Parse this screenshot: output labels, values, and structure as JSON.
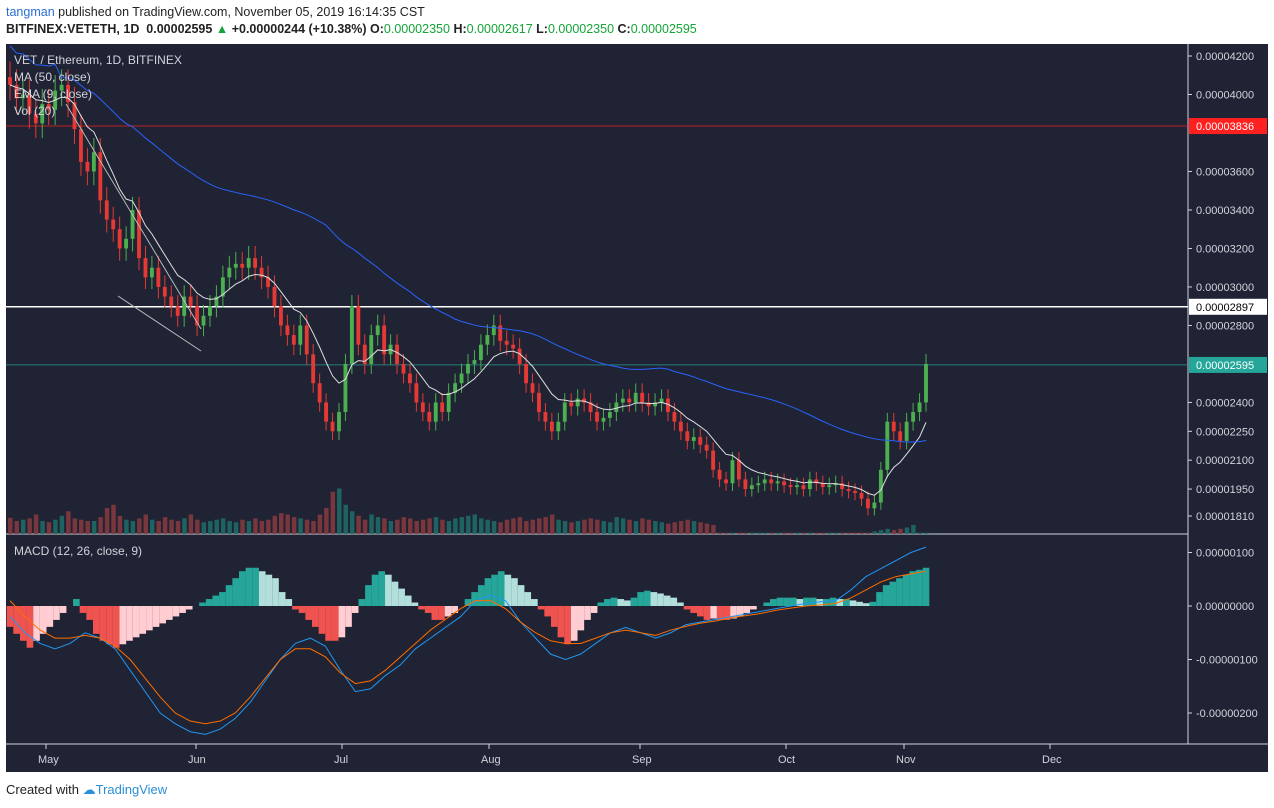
{
  "header": {
    "author": "tangman",
    "published": "published on TradingView.com, November 05, 2019 16:14:35 CST",
    "symbol": "BITFINEX:VETETH, 1D",
    "last": "0.00002595",
    "change": "+0.00000244 (+10.38%)",
    "open_label": "O:",
    "open": "0.00002350",
    "high_label": "H:",
    "high": "0.00002617",
    "low_label": "L:",
    "low": "0.00002350",
    "close_label": "C:",
    "close": "0.00002595"
  },
  "footer": {
    "created_with": "Created with",
    "brand": "TradingView"
  },
  "colors": {
    "up": "#26a69a",
    "down": "#ef5350",
    "up_candle": "#4caf50",
    "down_candle": "#e53935",
    "background": "#1f2333",
    "grid": "#2a2e3e"
  },
  "chart_data": [
    {
      "type": "candlestick",
      "title": "VET / Ethereum, 1D, BITFINEX",
      "indicators": [
        "MA (50, close)",
        "EMA (9, close)",
        "Vol (20)"
      ],
      "y_ticks": [
        "0.00004200",
        "0.00004000",
        "0.00003836",
        "0.00003600",
        "0.00003400",
        "0.00003200",
        "0.00003000",
        "0.00002897",
        "0.00002800",
        "0.00002595",
        "0.00002400",
        "0.00002250",
        "0.00002100",
        "0.00001950",
        "0.00001810"
      ],
      "y_tick_values": [
        4.2e-05,
        4e-05,
        3.8e-05,
        3.6e-05,
        3.4e-05,
        3.2e-05,
        3e-05,
        2.9e-05,
        2.8e-05,
        2.6e-05,
        2.4e-05,
        2.25e-05,
        2.1e-05,
        1.95e-05,
        1.81e-05
      ],
      "price_lines": [
        {
          "label": "0.00003836",
          "value": 3.836e-05,
          "color": "#ff2020"
        },
        {
          "label": "0.00002897",
          "value": 2.897e-05,
          "color": "#ffffff"
        },
        {
          "label": "0.00002595",
          "value": 2.595e-05,
          "color": "#26a69a"
        }
      ],
      "x_labels": [
        "May",
        "Jun",
        "Jul",
        "Aug",
        "Sep",
        "Oct",
        "Nov",
        "Dec"
      ],
      "closes": [
        4.05e-05,
        3.98e-05,
        4e-05,
        3.9e-05,
        3.85e-05,
        3.95e-05,
        3.92e-05,
        4.02e-05,
        4.05e-05,
        3.96e-05,
        3.82e-05,
        3.65e-05,
        3.6e-05,
        3.7e-05,
        3.45e-05,
        3.35e-05,
        3.3e-05,
        3.2e-05,
        3.25e-05,
        3.4e-05,
        3.15e-05,
        3.05e-05,
        3.1e-05,
        3e-05,
        2.95e-05,
        2.9e-05,
        2.85e-05,
        2.95e-05,
        2.9e-05,
        2.8e-05,
        2.85e-05,
        2.9e-05,
        2.95e-05,
        3.05e-05,
        3.1e-05,
        3.12e-05,
        3.1e-05,
        3.15e-05,
        3.1e-05,
        3.05e-05,
        3e-05,
        2.9e-05,
        2.8e-05,
        2.75e-05,
        2.7e-05,
        2.8e-05,
        2.65e-05,
        2.5e-05,
        2.4e-05,
        2.3e-05,
        2.25e-05,
        2.35e-05,
        2.6e-05,
        2.9e-05,
        2.7e-05,
        2.6e-05,
        2.75e-05,
        2.8e-05,
        2.65e-05,
        2.7e-05,
        2.6e-05,
        2.55e-05,
        2.5e-05,
        2.4e-05,
        2.35e-05,
        2.3e-05,
        2.4e-05,
        2.35e-05,
        2.45e-05,
        2.5e-05,
        2.55e-05,
        2.6e-05,
        2.62e-05,
        2.7e-05,
        2.75e-05,
        2.8e-05,
        2.72e-05,
        2.7e-05,
        2.68e-05,
        2.6e-05,
        2.5e-05,
        2.45e-05,
        2.35e-05,
        2.3e-05,
        2.25e-05,
        2.3e-05,
        2.4e-05,
        2.38e-05,
        2.42e-05,
        2.4e-05,
        2.35e-05,
        2.3e-05,
        2.32e-05,
        2.35e-05,
        2.4e-05,
        2.42e-05,
        2.4e-05,
        2.45e-05,
        2.4e-05,
        2.38e-05,
        2.4e-05,
        2.42e-05,
        2.35e-05,
        2.3e-05,
        2.25e-05,
        2.2e-05,
        2.22e-05,
        2.18e-05,
        2.15e-05,
        2.05e-05,
        2e-05,
        1.98e-05,
        2.1e-05,
        2e-05,
        1.95e-05,
        1.97e-05,
        1.98e-05,
        2e-05,
        1.98e-05,
        1.99e-05,
        1.97e-05,
        1.96e-05,
        1.97e-05,
        1.95e-05,
        2e-05,
        1.98e-05,
        1.96e-05,
        1.97e-05,
        1.98e-05,
        1.95e-05,
        1.94e-05,
        1.93e-05,
        1.9e-05,
        1.85e-05,
        1.88e-05,
        2.05e-05,
        2.3e-05,
        2.25e-05,
        2.2e-05,
        2.3e-05,
        2.35e-05,
        2.4e-05,
        2.6e-05
      ],
      "ma50_closes_note": "",
      "volume": [
        25,
        20,
        22,
        24,
        30,
        20,
        18,
        22,
        28,
        35,
        24,
        22,
        20,
        20,
        26,
        40,
        45,
        28,
        22,
        20,
        24,
        30,
        22,
        20,
        26,
        22,
        20,
        24,
        30,
        22,
        18,
        20,
        22,
        24,
        20,
        18,
        22,
        20,
        24,
        20,
        22,
        28,
        32,
        30,
        26,
        24,
        22,
        20,
        30,
        40,
        65,
        70,
        45,
        35,
        28,
        22,
        30,
        26,
        24,
        20,
        22,
        26,
        24,
        20,
        22,
        24,
        26,
        22,
        20,
        24,
        26,
        28,
        30,
        24,
        22,
        20,
        18,
        22,
        24,
        26,
        20,
        22,
        24,
        26,
        30,
        22,
        20,
        18,
        20,
        22,
        24,
        22,
        20,
        18,
        26,
        24,
        22,
        20,
        24,
        22,
        20,
        18,
        16,
        18,
        20,
        22,
        20,
        18,
        16,
        14,
        2,
        2,
        2,
        2,
        2,
        2,
        2,
        2,
        2,
        2,
        2,
        2,
        2,
        2,
        2,
        2,
        2,
        2,
        2,
        2,
        2,
        2,
        2,
        2,
        4,
        6,
        8,
        6,
        8,
        10,
        14
      ]
    },
    {
      "type": "bar",
      "title": "MACD (12, 26, close, 9)",
      "y_ticks": [
        "0.00000100",
        "0.00000000",
        "-0.00000100",
        "-0.00000200"
      ],
      "y_tick_values": [
        1e-06,
        0.0,
        -1e-06,
        -2e-06
      ],
      "histogram": [
        -0.3,
        -0.4,
        -0.5,
        -0.6,
        -0.5,
        -0.4,
        -0.3,
        -0.2,
        -0.1,
        0.0,
        0.1,
        -0.1,
        -0.2,
        -0.4,
        -0.5,
        -0.55,
        -0.6,
        -0.55,
        -0.5,
        -0.45,
        -0.4,
        -0.35,
        -0.3,
        -0.25,
        -0.2,
        -0.15,
        -0.1,
        -0.05,
        0.0,
        0.05,
        0.1,
        0.15,
        0.2,
        0.3,
        0.4,
        0.5,
        0.55,
        0.55,
        0.5,
        0.45,
        0.4,
        0.2,
        0.1,
        -0.05,
        -0.1,
        -0.2,
        -0.3,
        -0.4,
        -0.5,
        -0.5,
        -0.45,
        -0.3,
        -0.1,
        0.1,
        0.3,
        0.45,
        0.5,
        0.45,
        0.35,
        0.25,
        0.15,
        0.05,
        -0.05,
        -0.1,
        -0.2,
        -0.2,
        -0.15,
        -0.1,
        0.0,
        0.1,
        0.2,
        0.3,
        0.4,
        0.45,
        0.5,
        0.45,
        0.4,
        0.3,
        0.2,
        0.1,
        -0.05,
        -0.15,
        -0.3,
        -0.45,
        -0.55,
        -0.5,
        -0.35,
        -0.2,
        -0.1,
        0.05,
        0.1,
        0.12,
        0.1,
        0.08,
        0.12,
        0.2,
        0.22,
        0.2,
        0.18,
        0.15,
        0.12,
        0.05,
        -0.05,
        -0.1,
        -0.15,
        -0.2,
        -0.18,
        -0.2,
        -0.2,
        -0.18,
        -0.15,
        -0.1,
        -0.05,
        0.0,
        0.05,
        0.1,
        0.12,
        0.12,
        0.12,
        0.1,
        0.12,
        0.12,
        0.1,
        0.1,
        0.12,
        0.1,
        0.1,
        0.08,
        0.06,
        0.04,
        0.06,
        0.2,
        0.3,
        0.35,
        0.4,
        0.45,
        0.5,
        0.52,
        0.55
      ],
      "macd_line": [
        -0.2,
        -0.5,
        -0.7,
        -0.8,
        -0.7,
        -0.5,
        -0.6,
        -0.8,
        -1.2,
        -1.6,
        -2.0,
        -2.2,
        -2.35,
        -2.4,
        -2.3,
        -2.1,
        -1.8,
        -1.4,
        -1.0,
        -0.7,
        -0.6,
        -0.75,
        -1.2,
        -1.6,
        -1.55,
        -1.3,
        -1.1,
        -0.8,
        -0.6,
        -0.4,
        -0.2,
        0.1,
        0.2,
        0.1,
        -0.3,
        -0.6,
        -0.9,
        -1.0,
        -0.9,
        -0.7,
        -0.5,
        -0.4,
        -0.5,
        -0.6,
        -0.5,
        -0.35,
        -0.3,
        -0.25,
        -0.2,
        -0.15,
        -0.1,
        -0.05,
        0.0,
        0.05,
        0.08,
        0.1,
        0.3,
        0.55,
        0.7,
        0.85,
        1.0,
        1.1
      ],
      "signal_line": [
        0.1,
        -0.2,
        -0.45,
        -0.6,
        -0.6,
        -0.55,
        -0.6,
        -0.75,
        -1.0,
        -1.35,
        -1.7,
        -2.0,
        -2.15,
        -2.2,
        -2.15,
        -2.0,
        -1.7,
        -1.35,
        -1.0,
        -0.8,
        -0.8,
        -0.95,
        -1.25,
        -1.45,
        -1.4,
        -1.2,
        -0.95,
        -0.7,
        -0.45,
        -0.25,
        -0.05,
        0.1,
        0.1,
        -0.05,
        -0.3,
        -0.5,
        -0.65,
        -0.7,
        -0.7,
        -0.6,
        -0.5,
        -0.45,
        -0.5,
        -0.55,
        -0.45,
        -0.38,
        -0.32,
        -0.28,
        -0.22,
        -0.18,
        -0.14,
        -0.08,
        -0.04,
        0.0,
        0.02,
        0.05,
        0.15,
        0.3,
        0.45,
        0.55,
        0.6,
        0.65
      ]
    }
  ]
}
